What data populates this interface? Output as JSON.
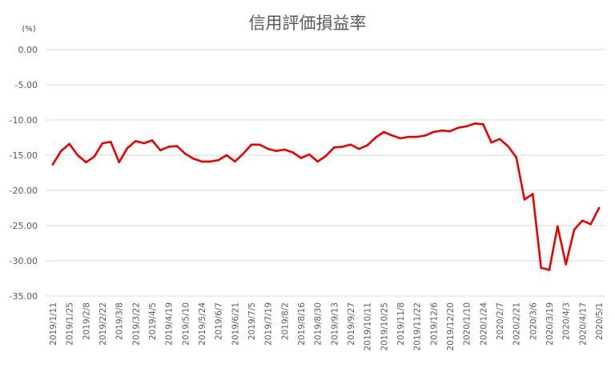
{
  "chart_data": {
    "type": "line",
    "title": "信用評価損益率",
    "unit_label": "(%)",
    "xlabel": "",
    "ylabel": "",
    "ylim": [
      -35,
      0
    ],
    "y_ticks": [
      "0.00",
      "-5.00",
      "-10.00",
      "-15.00",
      "-20.00",
      "-25.00",
      "-30.00",
      "-35.00"
    ],
    "y_tick_values": [
      0,
      -5,
      -10,
      -15,
      -20,
      -25,
      -30,
      -35
    ],
    "grid": true,
    "legend": "none",
    "color": "#ee0000",
    "x_tick_labels": [
      "2019/1/11",
      "2019/1/25",
      "2019/2/8",
      "2019/2/22",
      "2019/3/8",
      "2019/3/22",
      "2019/4/5",
      "2019/4/19",
      "2019/5/10",
      "2019/5/24",
      "2019/6/7",
      "2019/6/21",
      "2019/7/5",
      "2019/7/19",
      "2019/8/2",
      "2019/8/16",
      "2019/8/30",
      "2019/9/13",
      "2019/9/27",
      "2019/10/11",
      "2019/10/25",
      "2019/11/8",
      "2019/11/22",
      "2019/12/6",
      "2019/12/20",
      "2020/1/10",
      "2020/1/24",
      "2020/2/7",
      "2020/2/21",
      "2020/3/6",
      "2020/3/19",
      "2020/4/3",
      "2020/4/17",
      "2020/5/1"
    ],
    "x": [
      "2019/1/11",
      "2019/1/18",
      "2019/1/25",
      "2019/2/1",
      "2019/2/8",
      "2019/2/15",
      "2019/2/22",
      "2019/3/1",
      "2019/3/8",
      "2019/3/15",
      "2019/3/22",
      "2019/3/29",
      "2019/4/5",
      "2019/4/12",
      "2019/4/19",
      "2019/4/26",
      "2019/5/10",
      "2019/5/17",
      "2019/5/24",
      "2019/5/31",
      "2019/6/7",
      "2019/6/14",
      "2019/6/21",
      "2019/6/28",
      "2019/7/5",
      "2019/7/12",
      "2019/7/19",
      "2019/7/26",
      "2019/8/2",
      "2019/8/9",
      "2019/8/16",
      "2019/8/23",
      "2019/8/30",
      "2019/9/6",
      "2019/9/13",
      "2019/9/20",
      "2019/9/27",
      "2019/10/4",
      "2019/10/11",
      "2019/10/18",
      "2019/10/25",
      "2019/11/1",
      "2019/11/8",
      "2019/11/15",
      "2019/11/22",
      "2019/11/29",
      "2019/12/6",
      "2019/12/13",
      "2019/12/20",
      "2019/12/27",
      "2020/1/10",
      "2020/1/17",
      "2020/1/24",
      "2020/1/31",
      "2020/2/7",
      "2020/2/14",
      "2020/2/21",
      "2020/2/28",
      "2020/3/6",
      "2020/3/13",
      "2020/3/19",
      "2020/3/27",
      "2020/4/3",
      "2020/4/10",
      "2020/4/17",
      "2020/4/24",
      "2020/5/1"
    ],
    "series": [
      {
        "name": "",
        "values": [
          -16.3,
          -14.4,
          -13.4,
          -15.0,
          -16.0,
          -15.2,
          -13.3,
          -13.1,
          -16.0,
          -14.0,
          -13.0,
          -13.3,
          -12.9,
          -14.3,
          -13.8,
          -13.7,
          -14.8,
          -15.5,
          -15.9,
          -15.9,
          -15.7,
          -15.0,
          -15.9,
          -14.8,
          -13.5,
          -13.5,
          -14.1,
          -14.4,
          -14.2,
          -14.6,
          -15.4,
          -14.9,
          -15.9,
          -15.1,
          -13.9,
          -13.8,
          -13.5,
          -14.1,
          -13.6,
          -12.5,
          -11.7,
          -12.2,
          -12.6,
          -12.4,
          -12.4,
          -12.2,
          -11.7,
          -11.5,
          -11.6,
          -11.1,
          -10.9,
          -10.5,
          -10.6,
          -13.2,
          -12.7,
          -13.7,
          -15.3,
          -21.3,
          -20.5,
          -31.0,
          -31.3,
          -25.1,
          -30.5,
          -25.6,
          -24.3,
          -24.8,
          -22.5
        ]
      }
    ]
  }
}
